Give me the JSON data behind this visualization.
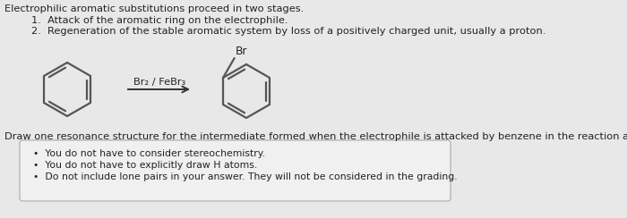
{
  "bg_color": "#e8e8e8",
  "title_text": "Electrophilic aromatic substitutions proceed in two stages.",
  "point1": "Attack of the aromatic ring on the electrophile.",
  "point2": "Regeneration of the stable aromatic system by loss of a positively charged unit, usually a proton.",
  "reagent_label": "Br₂ / FeBr₃",
  "br_label": "Br",
  "draw_question": "Draw one resonance structure for the intermediate formed when the electrophile is attacked by benzene in the reaction above.",
  "bullet1": "You do not have to consider stereochemistry.",
  "bullet2": "You do not have to explicitly draw H atoms.",
  "bullet3": "Do not include lone pairs in your answer. They will not be considered in the grading.",
  "box_bg": "#f0f0f0",
  "box_edge": "#aaaaaa",
  "text_color": "#222222",
  "font_size_main": 8.2,
  "font_size_bullet": 7.8
}
